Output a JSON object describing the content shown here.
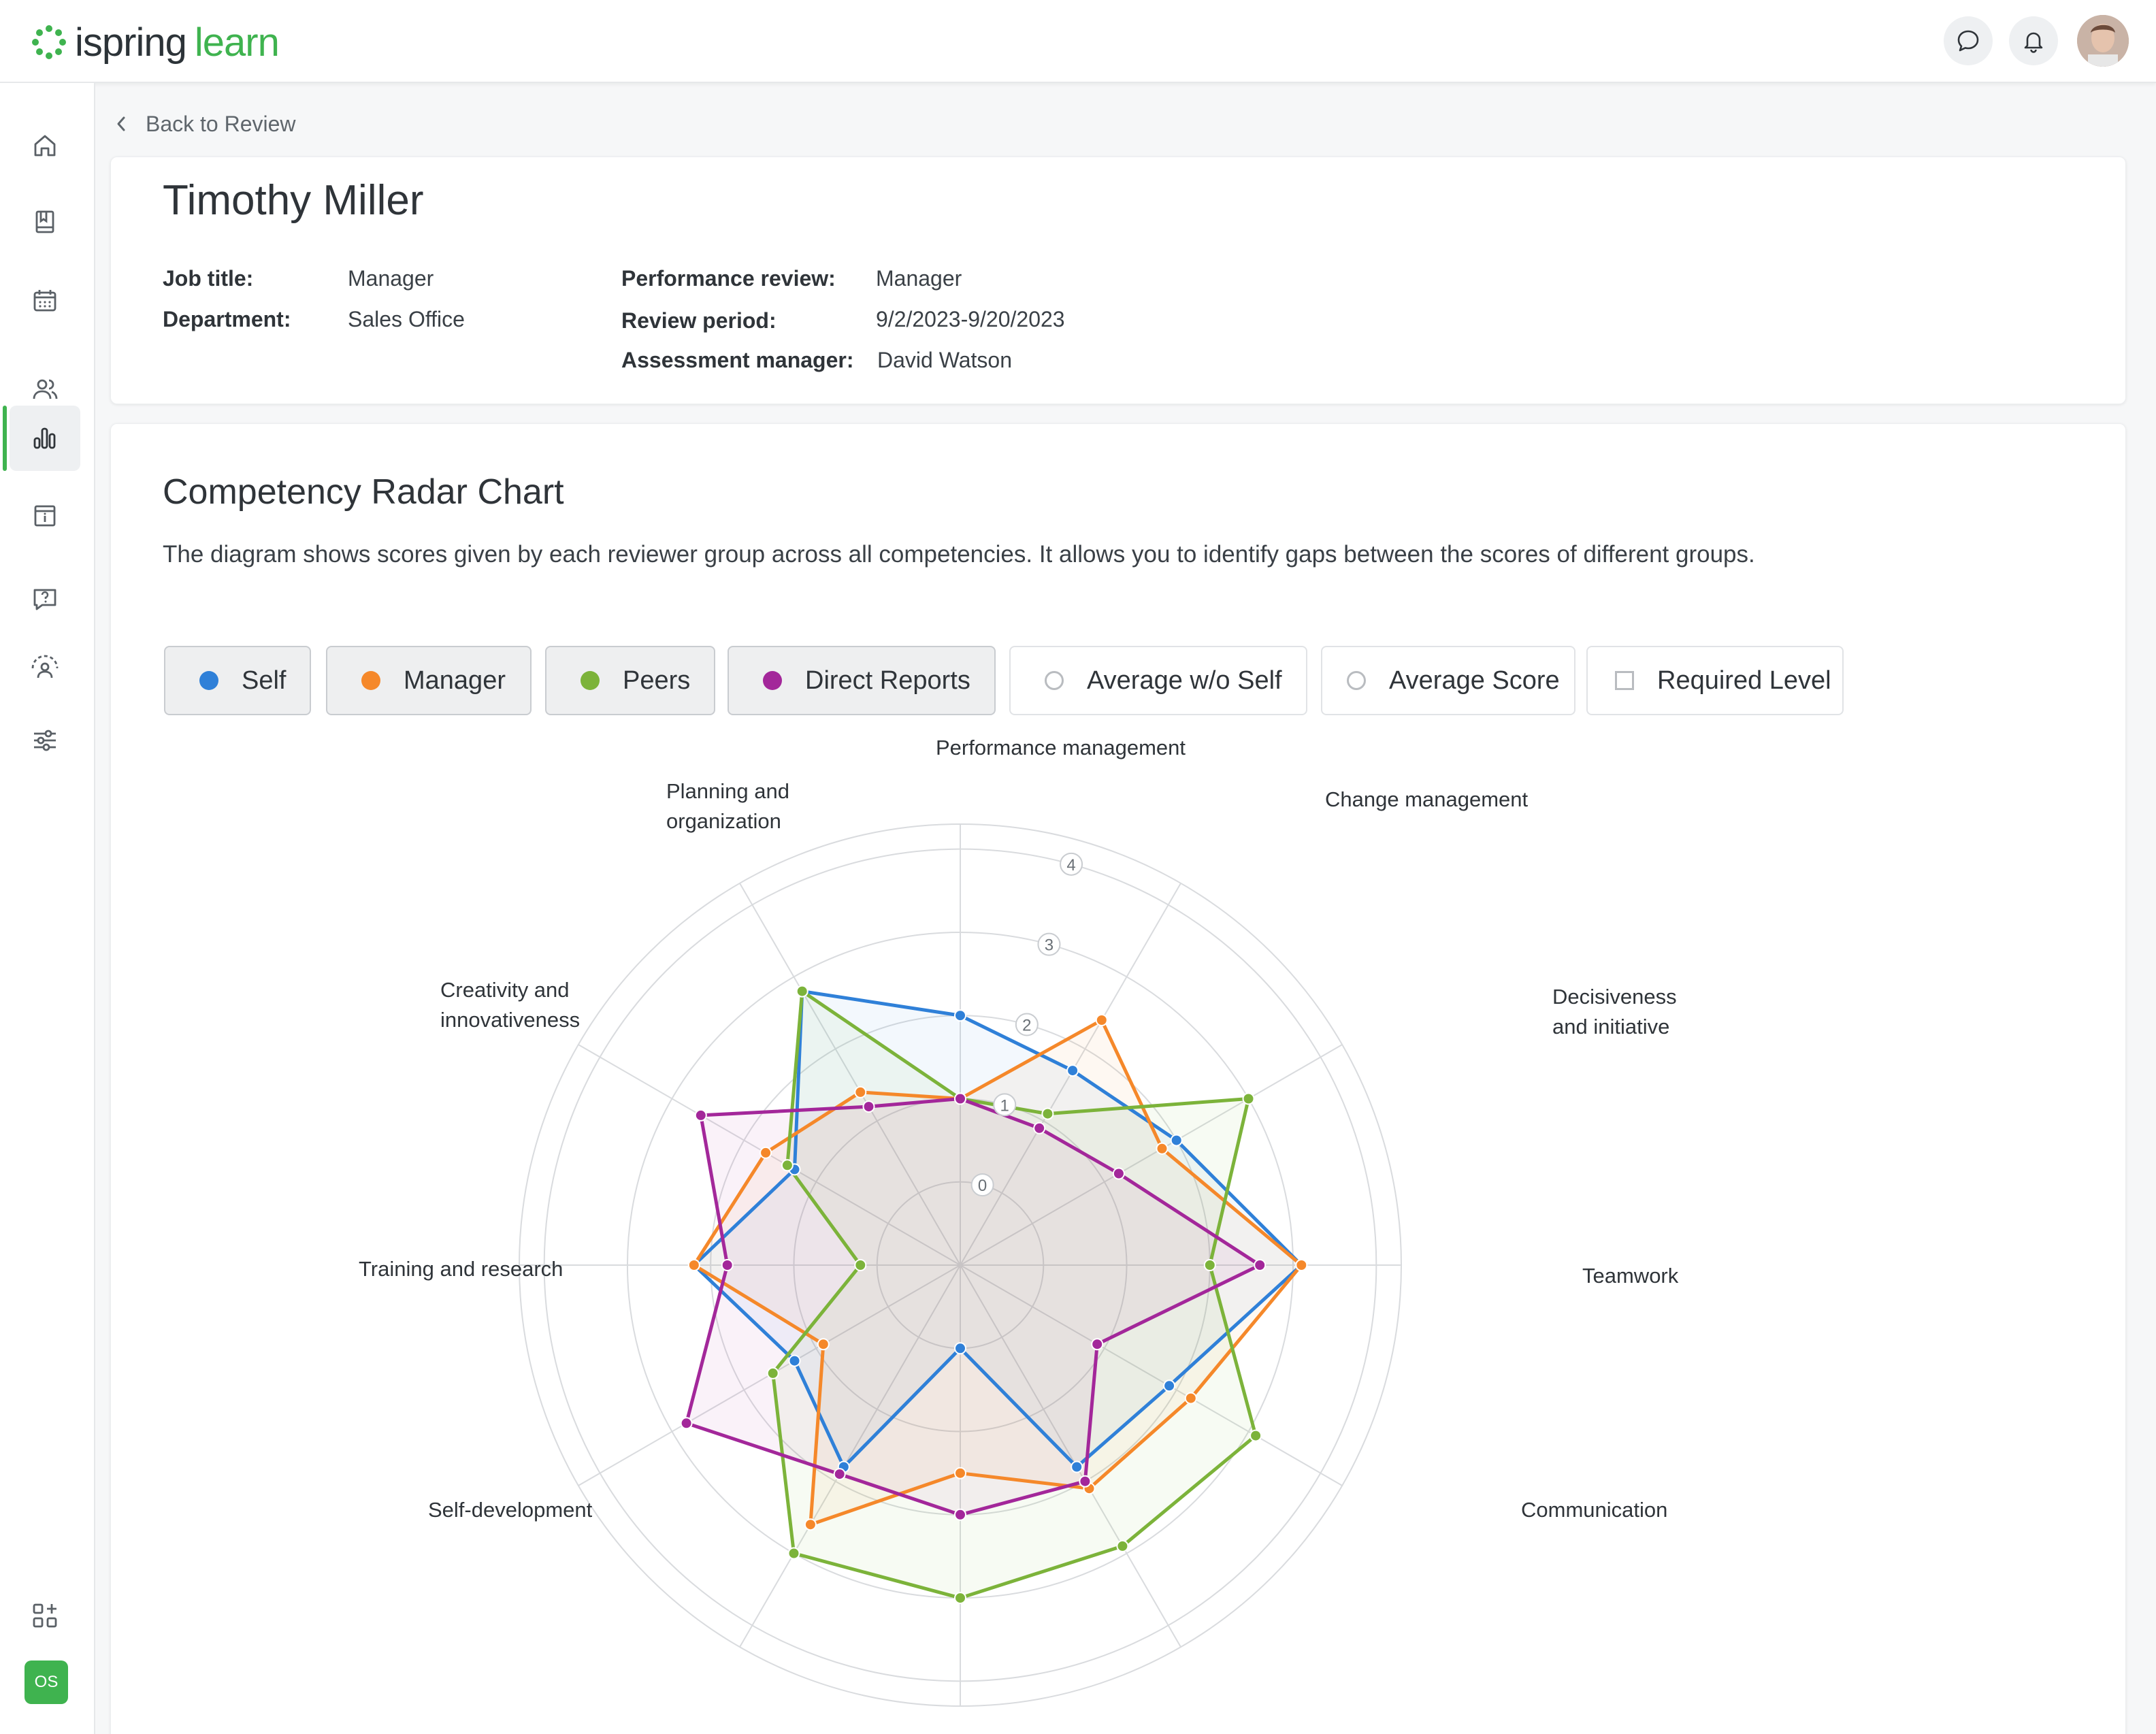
{
  "topbar": {
    "logo_part1": "ispring",
    "logo_part2": "learn"
  },
  "sidebar": {
    "badge": "OS"
  },
  "nav": {
    "back_label": "Back to Review"
  },
  "profile": {
    "name": "Timothy Miller",
    "job_title_label": "Job title:",
    "job_title": "Manager",
    "department_label": "Department:",
    "department": "Sales Office",
    "performance_review_label": "Performance review:",
    "performance_review": "Manager",
    "review_period_label": "Review period:",
    "review_period": "9/2/2023-9/20/2023",
    "assessment_manager_label": "Assessment manager:",
    "assessment_manager": "David Watson"
  },
  "chart_section": {
    "title": "Competency Radar Chart",
    "description": "The diagram shows scores given by each reviewer group across all competencies. It allows you to identify gaps between the scores of different groups."
  },
  "legend": [
    {
      "label": "Self",
      "color": "#2f80d8",
      "state": "on"
    },
    {
      "label": "Manager",
      "color": "#f5882a",
      "state": "on"
    },
    {
      "label": "Peers",
      "color": "#7cb33a",
      "state": "on"
    },
    {
      "label": "Direct Reports",
      "color": "#a3279a",
      "state": "on"
    },
    {
      "label": "Average w/o Self",
      "state": "off"
    },
    {
      "label": "Average Score",
      "state": "off"
    },
    {
      "label": "Required Level",
      "state": "off"
    }
  ],
  "chart_data": {
    "type": "radar",
    "title": "Competency Radar Chart",
    "categories": [
      "Performance management",
      "Change management",
      "Decisiveness and initiative",
      "Teamwork",
      "Communication",
      "",
      "",
      "",
      "Self-development",
      "Training and research",
      "Creativity and innovativeness",
      "Planning and organization"
    ],
    "category_lines": [
      [
        "Performance management"
      ],
      [
        "Change management"
      ],
      [
        "Decisiveness",
        "and initiative"
      ],
      [
        "Teamwork"
      ],
      [
        "Communication"
      ],
      [],
      [],
      [],
      [
        "Self-development"
      ],
      [
        "Training and research"
      ],
      [
        "Creativity and",
        "innovativeness"
      ],
      [
        "Planning and",
        "organization"
      ]
    ],
    "ticks": [
      "0",
      "1",
      "2",
      "3",
      "4"
    ],
    "rmin": -1,
    "rmax": 4.3,
    "grid": true,
    "series": [
      {
        "name": "Self",
        "color": "#2f80d8",
        "values": [
          2.0,
          1.7,
          2.0,
          3.1,
          1.9,
          1.8,
          0.0,
          1.8,
          1.3,
          2.2,
          1.3,
          2.8
        ]
      },
      {
        "name": "Manager",
        "color": "#f5882a",
        "values": [
          1.0,
          2.4,
          1.8,
          3.1,
          2.2,
          2.1,
          1.5,
          2.6,
          0.9,
          2.2,
          1.7,
          1.4
        ]
      },
      {
        "name": "Peers",
        "color": "#7cb33a",
        "values": [
          1.0,
          1.1,
          3.0,
          2.0,
          3.1,
          2.9,
          3.0,
          3.0,
          1.6,
          0.2,
          1.4,
          2.8
        ]
      },
      {
        "name": "Direct Reports",
        "color": "#a3279a",
        "values": [
          1.0,
          0.9,
          1.2,
          2.6,
          0.9,
          2.0,
          2.0,
          1.9,
          2.8,
          1.8,
          2.6,
          1.2
        ]
      }
    ]
  }
}
